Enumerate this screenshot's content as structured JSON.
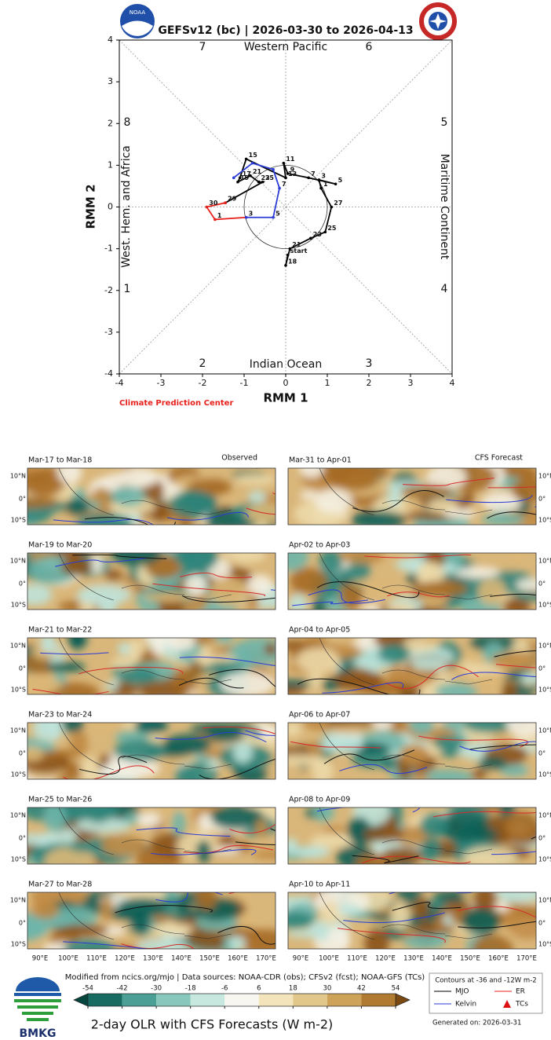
{
  "chart_data": [
    {
      "type": "line",
      "title": "GEFSv12 (bc) | 2026-03-30 to 2026-04-13",
      "xlabel": "RMM 1",
      "ylabel": "RMM 2",
      "xlim": [
        -4,
        4
      ],
      "ylim": [
        -4,
        4
      ],
      "xticks": [
        -4,
        -3,
        -2,
        -1,
        0,
        1,
        2,
        3,
        4
      ],
      "yticks": [
        -4,
        -3,
        -2,
        -1,
        0,
        1,
        2,
        3,
        4
      ],
      "phase_labels": [
        "1",
        "2",
        "3",
        "4",
        "5",
        "6",
        "7",
        "8"
      ],
      "regions": [
        "Western Pacific",
        "Maritime Continent",
        "Indian Ocean",
        "West. Hem. and Africa"
      ],
      "credit": "Climate Prediction Center",
      "logo_text": "NOAA",
      "series": [
        {
          "color": "#000000",
          "x": [
            0.05,
            0.0,
            0.1,
            0.6,
            0.95,
            1.1,
            0.85,
            0.8,
            1.2,
            0.55,
            0.05,
            -0.05,
            0.0,
            -0.95,
            -1.1,
            -1.15,
            -0.85,
            -0.65,
            -0.55,
            -1.45
          ],
          "y": [
            -1.15,
            -1.4,
            -1.0,
            -0.75,
            -0.6,
            0.0,
            0.45,
            0.65,
            0.55,
            0.7,
            0.8,
            1.05,
            0.7,
            1.15,
            0.7,
            0.6,
            0.75,
            0.6,
            0.6,
            0.1
          ],
          "labels": [
            "start",
            "18",
            "21",
            "23",
            "25",
            "27",
            "1",
            "3",
            "5",
            "7",
            "9",
            "11",
            "13",
            "15",
            "17",
            "19",
            "21",
            "23",
            "25",
            "29"
          ]
        },
        {
          "color": "#e8211d",
          "x": [
            -1.45,
            -1.9,
            -1.7,
            -0.95
          ],
          "y": [
            0.1,
            0.0,
            -0.3,
            -0.25
          ],
          "labels": [
            null,
            "30",
            "1",
            "3"
          ]
        },
        {
          "color": "#2a3bd6",
          "x": [
            -0.95,
            -0.3,
            -0.15,
            -0.3,
            -0.8,
            -1.25
          ],
          "y": [
            -0.25,
            -0.25,
            0.45,
            0.9,
            1.05,
            0.7
          ],
          "labels": [
            null,
            "5",
            "7",
            null,
            null,
            null
          ]
        }
      ]
    },
    {
      "type": "colorbar",
      "title": "2-day OLR with CFS Forecasts (W m-2)",
      "xlim": [
        -54,
        54
      ],
      "xticks": [
        -54,
        -42,
        -30,
        -18,
        -6,
        6,
        18,
        30,
        42,
        54
      ],
      "colors": [
        "#176b61",
        "#4c9f95",
        "#88c8bc",
        "#c6e8df",
        "#f7f6f0",
        "#f3e4bb",
        "#e2c78a",
        "#cfa25a",
        "#b07a30"
      ],
      "extend_colors": [
        "#04463e",
        "#7b4912"
      ]
    }
  ],
  "maps": {
    "observed_label": "Observed",
    "forecast_label": "CFS Forecast",
    "lat_labels": [
      "10°N",
      "0°",
      "10°S"
    ],
    "lon_labels": [
      "90°E",
      "100°E",
      "110°E",
      "120°E",
      "130°E",
      "140°E",
      "150°E",
      "160°E",
      "170°E"
    ],
    "panels": [
      "Mar-17 to Mar-18",
      "Mar-19 to Mar-20",
      "Mar-21 to Mar-22",
      "Mar-23 to Mar-24",
      "Mar-25 to Mar-26",
      "Mar-27 to Mar-28",
      "Mar-31 to Apr-01",
      "Apr-02 to Apr-03",
      "Apr-04 to Apr-05",
      "Apr-06 to Apr-07",
      "Apr-08 to Apr-09",
      "Apr-10 to Apr-11"
    ]
  },
  "legend": {
    "title": "Contours at -36 and -12W m-2",
    "items": [
      "MJO",
      "ER",
      "Kelvin",
      "TCs"
    ]
  },
  "footer": {
    "source": "Modified from ncics.org/mjo | Data sources: NOAA-CDR (obs); CFSv2 (fcst); NOAA-GFS (TCs)",
    "generated": "Generated on: 2026-03-31",
    "agency": "BMKG"
  }
}
